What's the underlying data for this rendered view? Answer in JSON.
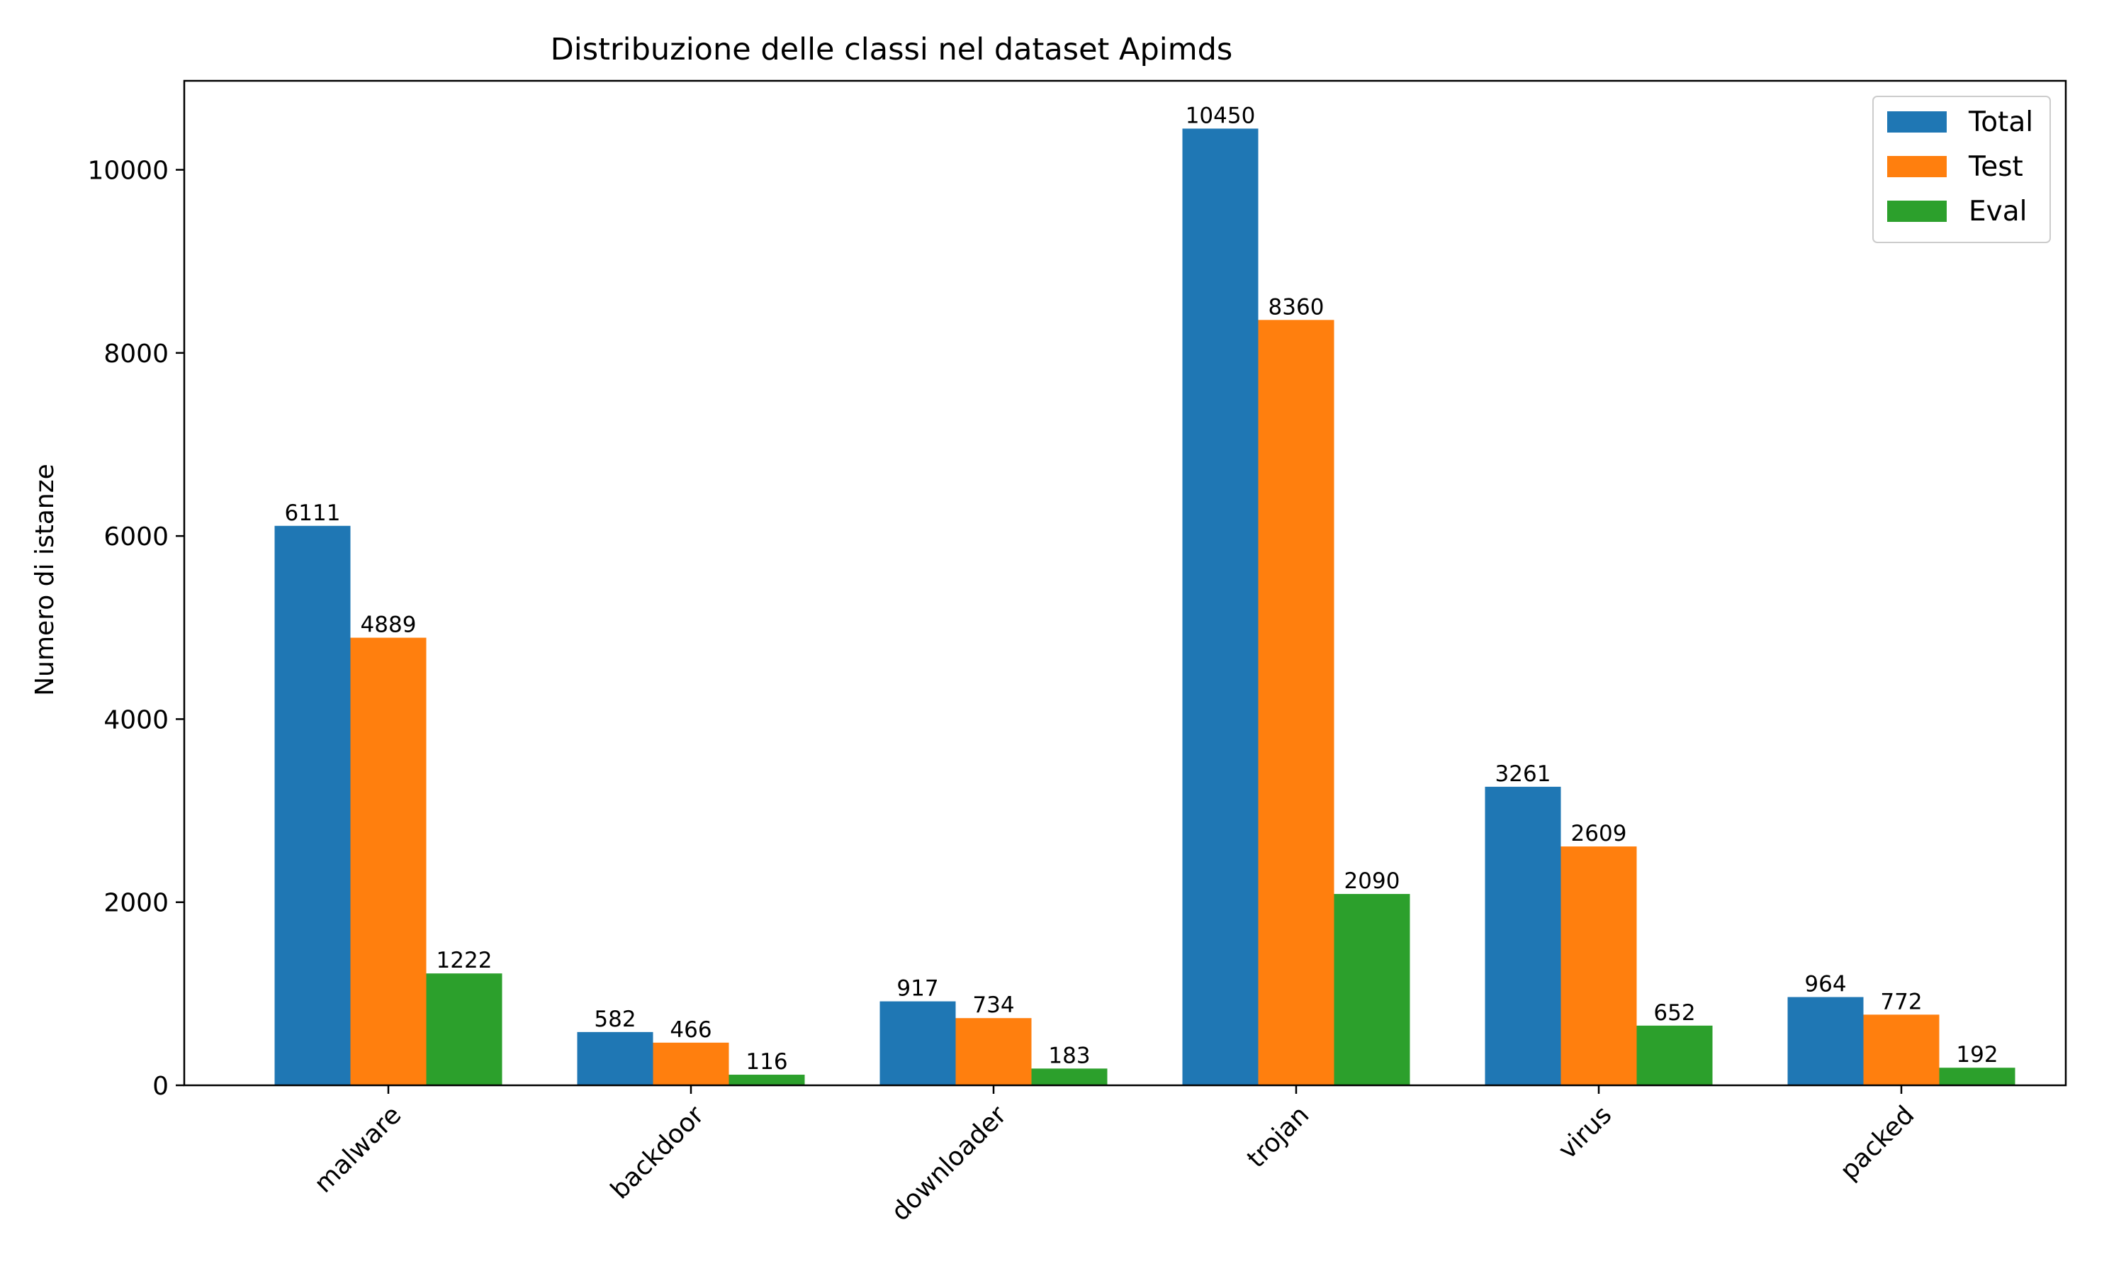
{
  "chart_data": {
    "type": "bar",
    "title": "Distribuzione delle classi nel dataset Apimds",
    "xlabel": "",
    "ylabel": "Numero di istanze",
    "categories": [
      "malware",
      "backdoor",
      "downloader",
      "trojan",
      "virus",
      "packed"
    ],
    "series": [
      {
        "name": "Total",
        "color": "#1f77b4",
        "values": [
          6111,
          582,
          917,
          10450,
          3261,
          964
        ]
      },
      {
        "name": "Test",
        "color": "#ff7f0e",
        "values": [
          4889,
          466,
          734,
          8360,
          2609,
          772
        ]
      },
      {
        "name": "Eval",
        "color": "#2ca02c",
        "values": [
          1222,
          116,
          183,
          2090,
          652,
          192
        ]
      }
    ],
    "ylim": [
      0,
      10972
    ],
    "yticks": [
      0,
      2000,
      4000,
      6000,
      8000,
      10000
    ],
    "grid": false,
    "legend_position": "top-right",
    "xtick_rotation": 45
  }
}
